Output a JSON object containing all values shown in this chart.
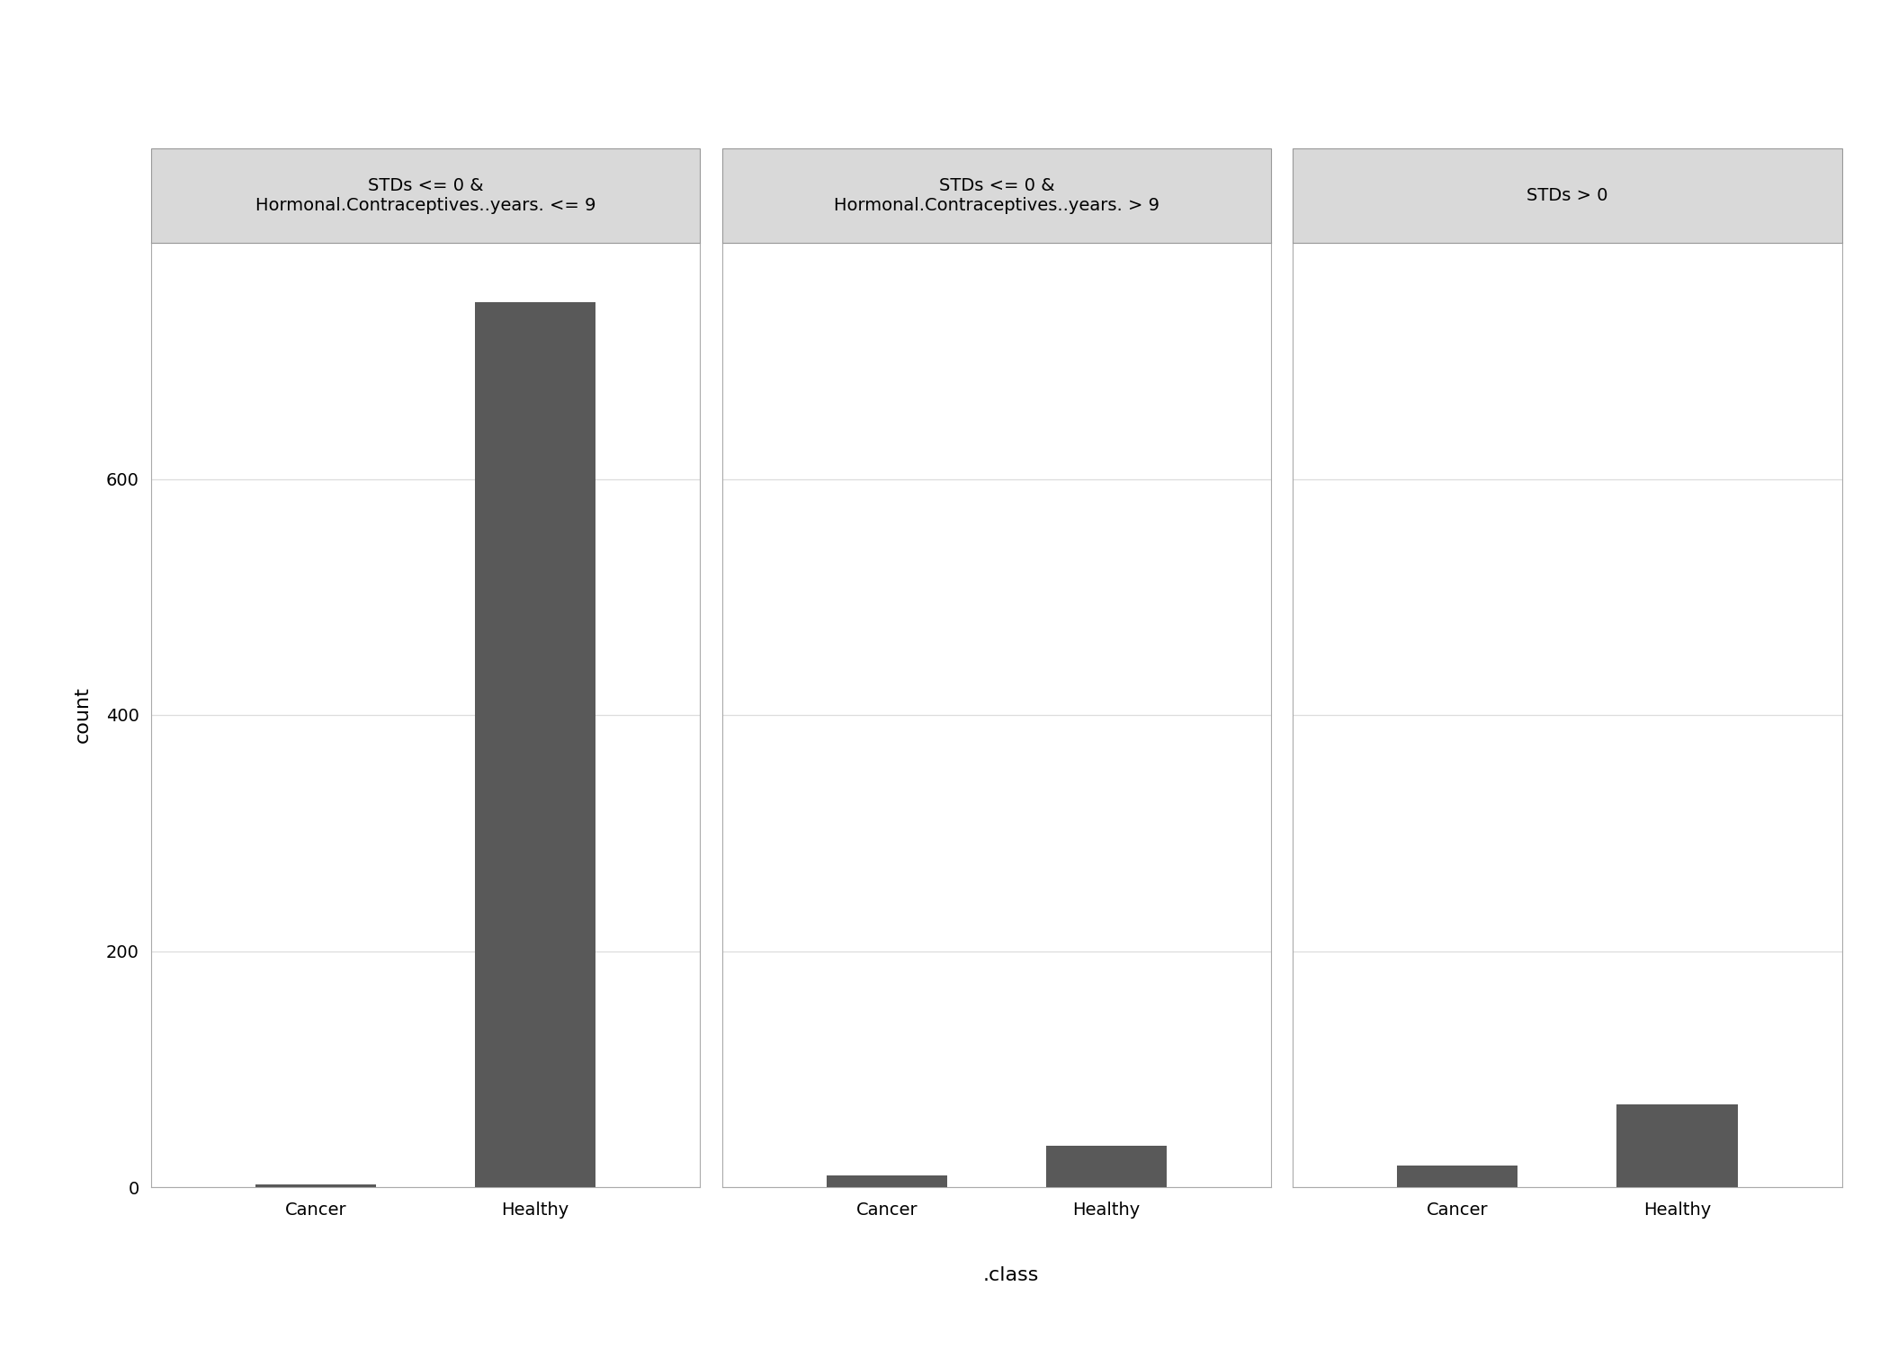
{
  "panels": [
    {
      "title": "STDs <= 0 &\nHormonal.Contraceptives..years. <= 9",
      "categories": [
        "Cancer",
        "Healthy"
      ],
      "values": [
        2,
        750
      ]
    },
    {
      "title": "STDs <= 0 &\nHormonal.Contraceptives..years. > 9",
      "categories": [
        "Cancer",
        "Healthy"
      ],
      "values": [
        10,
        35
      ]
    },
    {
      "title": "STDs > 0",
      "categories": [
        "Cancer",
        "Healthy"
      ],
      "values": [
        18,
        70
      ]
    }
  ],
  "bar_color": "#595959",
  "bar_width": 0.55,
  "ylabel": "count",
  "xlabel": ".class",
  "ylim": [
    0,
    800
  ],
  "yticks": [
    0,
    200,
    400,
    600
  ],
  "fig_bg": "#ffffff",
  "panel_bg": "#ffffff",
  "strip_bg": "#d9d9d9",
  "strip_edge": "#999999",
  "grid_color": "#dddddd",
  "spine_color": "#aaaaaa",
  "title_fontsize": 14,
  "axis_label_fontsize": 16,
  "tick_fontsize": 14
}
